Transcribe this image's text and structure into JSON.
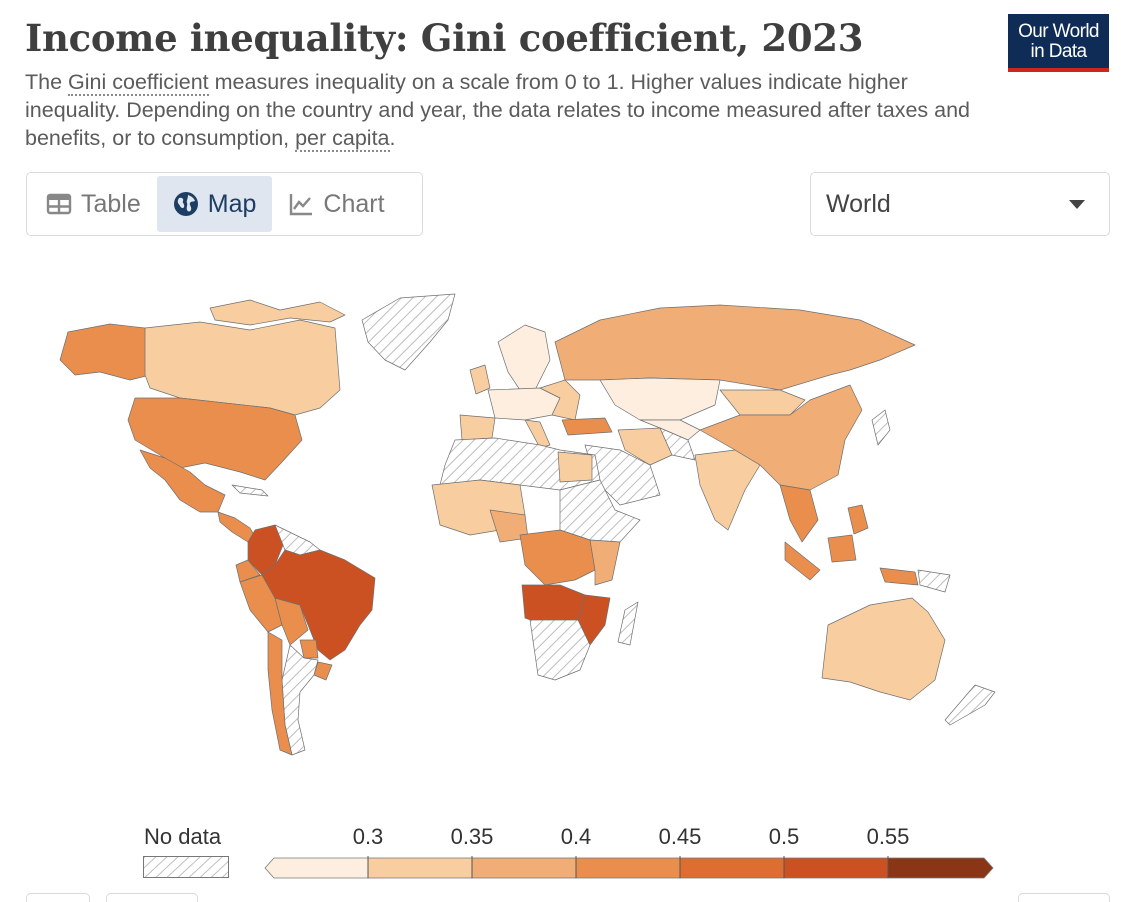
{
  "header": {
    "title": "Income inequality: Gini coefficient, 2023",
    "subtitle_parts": {
      "p1": "The ",
      "link1": "Gini coefficient",
      "p2": " measures inequality on a scale from 0 to 1. Higher values indicate higher inequality. Depending on the country and year, the data relates to income measured after taxes and benefits, or to consumption, ",
      "link2": "per capita",
      "p3": "."
    },
    "logo_line1": "Our World",
    "logo_line2": "in Data"
  },
  "tabs": [
    {
      "label": "Table",
      "icon": "table-icon",
      "active": false
    },
    {
      "label": "Map",
      "icon": "globe-icon",
      "active": true
    },
    {
      "label": "Chart",
      "icon": "line-chart-icon",
      "active": false
    }
  ],
  "region_select": {
    "value": "World"
  },
  "legend": {
    "no_data_label": "No data",
    "ticks": [
      "0.3",
      "0.35",
      "0.4",
      "0.45",
      "0.5",
      "0.55"
    ],
    "colors": [
      "#fdeee0",
      "#f8cda0",
      "#f1ad76",
      "#ea8e4e",
      "#de6d32",
      "#cb5122",
      "#8b3517"
    ],
    "no_data_color": "#ffffff"
  }
}
